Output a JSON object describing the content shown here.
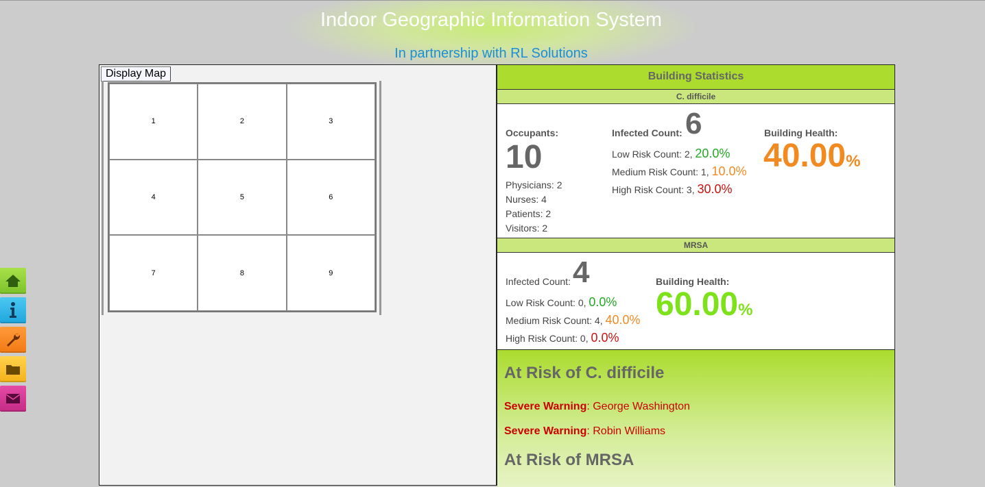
{
  "header": {
    "title": "Indoor Geographic Information System",
    "subtitle": "In partnership with RL Solutions"
  },
  "side_nav": [
    {
      "icon": "home-icon",
      "color": "#7cc22a"
    },
    {
      "icon": "info-icon",
      "color": "#1ea6dd"
    },
    {
      "icon": "wrench-icon",
      "color": "#f27a14"
    },
    {
      "icon": "folder-icon",
      "color": "#f5b21a"
    },
    {
      "icon": "mail-icon",
      "color": "#c42a86"
    }
  ],
  "map": {
    "display_button": "Display Map",
    "rooms": [
      "1",
      "2",
      "3",
      "4",
      "5",
      "6",
      "7",
      "8",
      "9"
    ]
  },
  "stats": {
    "title": "Building Statistics",
    "cdiff": {
      "header": "C. difficile",
      "occupants_label": "Occupants:",
      "occupants": "10",
      "physicians": "Physicians: 2",
      "nurses": "Nurses: 4",
      "patients": "Patients: 2",
      "visitors": "Visitors: 2",
      "infected_label": "Infected Count:",
      "infected": "6",
      "low_label": "Low Risk Count: 2, ",
      "low_pct": "20.0%",
      "medium_label": "Medium Risk Count: 1, ",
      "medium_pct": "10.0%",
      "high_label": "High Risk Count: 3, ",
      "high_pct": "30.0%",
      "health_label": "Building Health:",
      "health_value": "40.00",
      "health_unit": "%",
      "health_color": "#f28a22"
    },
    "mrsa": {
      "header": "MRSA",
      "infected_label": "Infected Count:",
      "infected": "4",
      "low_label": "Low Risk Count: 0, ",
      "low_pct": "0.0%",
      "medium_label": "Medium Risk Count: 4, ",
      "medium_pct": "40.0%",
      "high_label": "High Risk Count: 0, ",
      "high_pct": "0.0%",
      "health_label": "Building Health:",
      "health_value": "60.00",
      "health_unit": "%",
      "health_color": "#7ee21a"
    }
  },
  "at_risk": {
    "cdiff_heading": "At Risk of C. difficile",
    "warnings": [
      {
        "level": "Severe Warning",
        "sep": ": ",
        "name": "George Washington"
      },
      {
        "level": "Severe Warning",
        "sep": ": ",
        "name": "Robin Williams"
      }
    ],
    "mrsa_heading": "At Risk of MRSA"
  }
}
